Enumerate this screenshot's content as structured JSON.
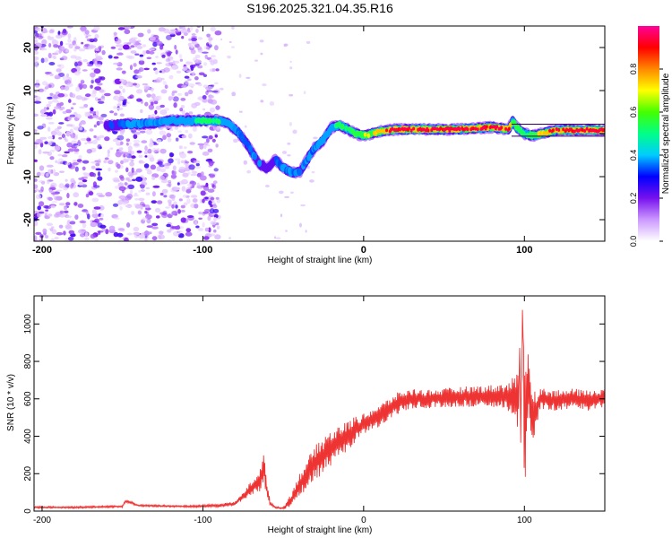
{
  "title": "S196.2025.321.04.35.R16",
  "chart_data": [
    {
      "type": "heatmap",
      "title": "S196.2025.321.04.35.R16",
      "xlabel": "Height of straight line (km)",
      "ylabel": "Frequency (Hz)",
      "xlim": [
        -205,
        150
      ],
      "ylim": [
        -25,
        25
      ],
      "xticks": [
        -200,
        -100,
        0,
        100
      ],
      "yticks": [
        -20,
        -10,
        0,
        10,
        20
      ],
      "colorbar": {
        "label": "Normalized spectral amplitude",
        "range": [
          0,
          1
        ],
        "ticks": [
          "0.0",
          "0.2",
          "0.4",
          "0.6",
          "0.8"
        ],
        "colors": [
          "#ffffff",
          "#cc99ff",
          "#7711ee",
          "#0000ff",
          "#00ccff",
          "#00ff88",
          "#44ff00",
          "#ffff00",
          "#ff8800",
          "#ff0000",
          "#ff0099"
        ]
      },
      "ridge": {
        "x": [
          -160,
          -150,
          -140,
          -130,
          -120,
          -110,
          -100,
          -90,
          -85,
          -80,
          -75,
          -70,
          -65,
          -60,
          -55,
          -50,
          -45,
          -40,
          -35,
          -30,
          -25,
          -20,
          -15,
          -10,
          -5,
          0,
          10,
          20,
          40,
          60,
          80,
          90,
          93,
          95,
          100,
          105,
          120,
          150
        ],
        "y": [
          1.8,
          2.2,
          2.2,
          2.5,
          3.0,
          3.0,
          3.0,
          3.0,
          2.5,
          1.0,
          -1.0,
          -4.0,
          -7.0,
          -8.0,
          -6.0,
          -8.0,
          -9.0,
          -9.0,
          -6.0,
          -3.0,
          -1.5,
          1.5,
          2.0,
          1.0,
          0.0,
          -0.5,
          0.5,
          1.0,
          1.0,
          1.0,
          1.5,
          1.0,
          3.0,
          1.5,
          0.0,
          -0.5,
          0.8,
          0.8
        ],
        "amp": [
          0.3,
          0.35,
          0.4,
          0.4,
          0.45,
          0.45,
          0.5,
          0.5,
          0.45,
          0.4,
          0.35,
          0.35,
          0.35,
          0.3,
          0.3,
          0.4,
          0.4,
          0.35,
          0.35,
          0.4,
          0.45,
          0.45,
          0.5,
          0.55,
          0.6,
          0.65,
          0.8,
          0.95,
          1.0,
          1.0,
          1.0,
          0.9,
          0.6,
          0.7,
          0.5,
          0.6,
          0.95,
          0.95
        ]
      },
      "noise_region_km": [
        -205,
        -90
      ]
    },
    {
      "type": "line",
      "xlabel": "Height of straight line (km)",
      "ylabel": "SNR (10 * v/v)",
      "xlim": [
        -205,
        150
      ],
      "ylim": [
        0,
        1150
      ],
      "xticks": [
        -200,
        -100,
        0,
        100
      ],
      "yticks": [
        0,
        200,
        400,
        600,
        800,
        1000
      ],
      "color": "#ee3333",
      "series": [
        {
          "name": "SNR",
          "x": [
            -205,
            -180,
            -150,
            -148,
            -140,
            -110,
            -90,
            -80,
            -75,
            -70,
            -65,
            -62,
            -60,
            -58,
            -55,
            -50,
            -45,
            -40,
            -35,
            -30,
            -25,
            -20,
            -15,
            -10,
            -5,
            0,
            5,
            10,
            15,
            20,
            25,
            30,
            40,
            50,
            60,
            70,
            80,
            85,
            90,
            95,
            97,
            98,
            99,
            100,
            102,
            105,
            110,
            120,
            130,
            140,
            150
          ],
          "y": [
            20,
            20,
            25,
            55,
            30,
            25,
            30,
            40,
            80,
            120,
            160,
            230,
            100,
            40,
            20,
            15,
            60,
            140,
            200,
            260,
            300,
            340,
            370,
            400,
            440,
            460,
            490,
            510,
            540,
            570,
            590,
            600,
            600,
            605,
            610,
            615,
            615,
            620,
            610,
            600,
            400,
            700,
            1100,
            350,
            700,
            500,
            600,
            590,
            600,
            590,
            610
          ],
          "noise_amplitude": [
            5,
            5,
            5,
            8,
            5,
            5,
            8,
            10,
            20,
            40,
            60,
            80,
            40,
            10,
            5,
            5,
            40,
            60,
            80,
            90,
            100,
            100,
            90,
            80,
            70,
            60,
            60,
            60,
            60,
            60,
            55,
            55,
            50,
            50,
            55,
            55,
            60,
            60,
            80,
            150,
            300,
            350,
            100,
            300,
            250,
            150,
            60,
            55,
            55,
            55,
            55
          ]
        }
      ]
    }
  ]
}
